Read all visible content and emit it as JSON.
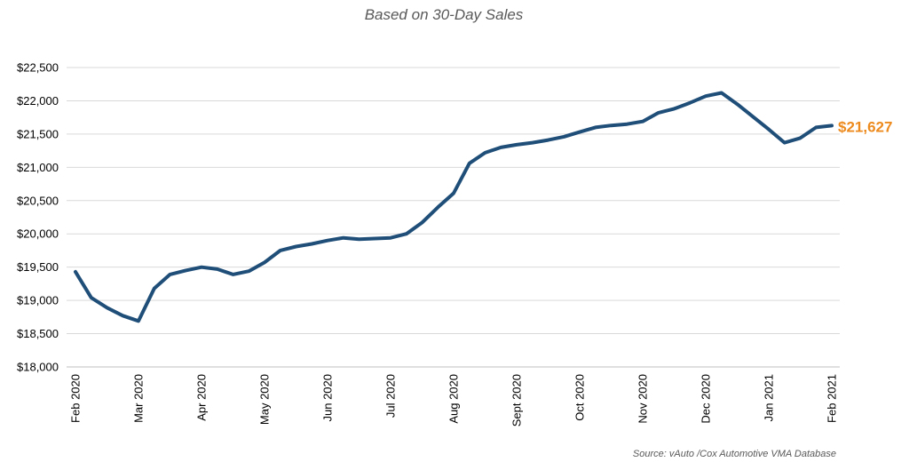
{
  "subtitle": "Based on 30-Day Sales",
  "source": "Source:  vAuto /Cox Automotive VMA Database",
  "end_label": "$21,627",
  "colors": {
    "line": "#1f4e79",
    "end_label": "#ed8b1f",
    "grid": "#d9d9d9"
  },
  "chart_data": {
    "type": "line",
    "title": "Based on 30-Day Sales",
    "xlabel": "",
    "ylabel": "",
    "ylim": [
      18000,
      22500
    ],
    "yticks": [
      18000,
      18500,
      19000,
      19500,
      20000,
      20500,
      21000,
      21500,
      22000,
      22500
    ],
    "ytick_labels": [
      "$18,000",
      "$18,500",
      "$19,000",
      "$19,500",
      "$20,000",
      "$20,500",
      "$21,000",
      "$21,500",
      "$22,000",
      "$22,500"
    ],
    "month_labels": [
      "Feb 2020",
      "Mar 2020",
      "Apr 2020",
      "May 2020",
      "Jun 2020",
      "Jul 2020",
      "Aug 2020",
      "Sept 2020",
      "Oct 2020",
      "Nov 2020",
      "Dec 2020",
      "Jan 2021",
      "Feb 2021"
    ],
    "grid": true,
    "legend": "none",
    "series": [
      {
        "values": [
          19430,
          19040,
          18890,
          18770,
          18690,
          19180,
          19390,
          19450,
          19500,
          19470,
          19390,
          19440,
          19570,
          19750,
          19810,
          19850,
          19900,
          19940,
          19920,
          19930,
          19940,
          20000,
          20170,
          20400,
          20610,
          21060,
          21220,
          21300,
          21340,
          21370,
          21410,
          21460,
          21530,
          21600,
          21630,
          21650,
          21690,
          21820,
          21880,
          21970,
          22070,
          22120,
          21950,
          21760,
          21570,
          21370,
          21440,
          21600,
          21627
        ]
      }
    ]
  }
}
